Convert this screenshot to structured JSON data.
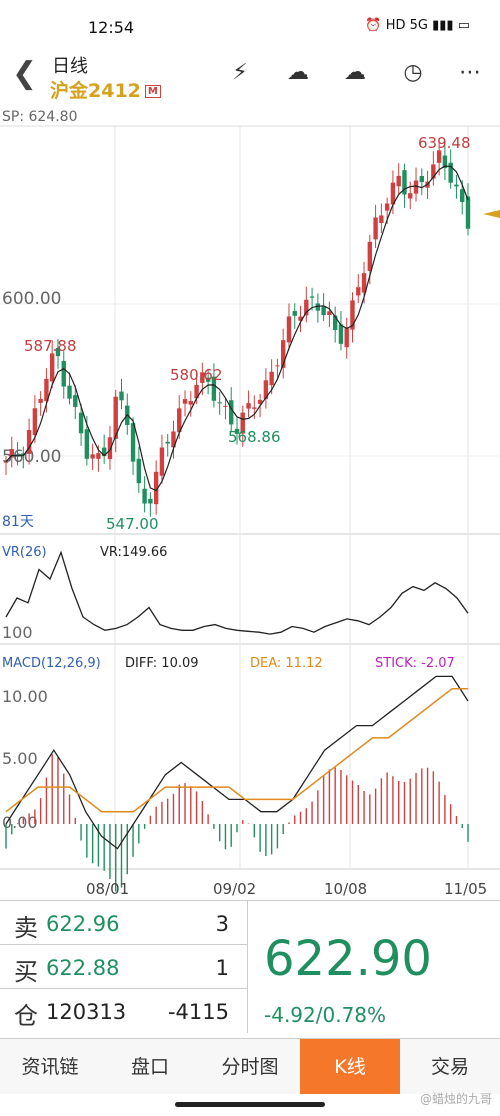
{
  "status": {
    "time": "12:54",
    "icons": "⏰ HD  5G ▮▮▮ ▭"
  },
  "nav": {
    "period": "日线",
    "symbol": "沪金2412",
    "badge": "M",
    "icons": [
      "lightning-icon",
      "cloud-down-icon",
      "cloud-sync-icon",
      "clock-icon",
      "more-icon"
    ]
  },
  "kline": {
    "sp_label": "SP: 624.80",
    "y_tick_upper": "600.00",
    "y_tick_lower": "560.00",
    "period_label": "81天",
    "annotations": {
      "high": "639.48",
      "left_high": "587.88",
      "mid_high": "580.62",
      "low": "547.00",
      "mid_low": "568.86"
    }
  },
  "vr": {
    "name": "VR(26)",
    "value_text": "VR:149.66",
    "tick": "100"
  },
  "macd": {
    "name": "MACD(12,26,9)",
    "diff": "DIFF: 10.09",
    "dea": "DEA: 11.12",
    "stick": "STICK: -2.07",
    "ticks": [
      "10.00",
      "5.00",
      "0.00"
    ]
  },
  "x_labels": [
    "08/01",
    "09/02",
    "10/08",
    "11/05"
  ],
  "quote": {
    "sell_label": "卖",
    "sell_price": "622.96",
    "sell_qty": "3",
    "buy_label": "买",
    "buy_price": "622.88",
    "buy_qty": "1",
    "oi_label": "仓",
    "oi_value": "120313",
    "oi_change": "-4115",
    "last": "622.90",
    "change": "-4.92/0.78%"
  },
  "tabs": [
    "资讯链",
    "盘口",
    "分时图",
    "K线",
    "交易"
  ],
  "watermark": "@蜡烛的九哥",
  "colors": {
    "up": "#d04040",
    "down": "#1f8f5f",
    "accent": "#f5782a",
    "gold": "#d6a21d",
    "dea": "#e08a1e",
    "stick": "#c020c0"
  },
  "chart_data": {
    "type": "candlestick",
    "x": [
      "08/01",
      "09/02",
      "10/08",
      "11/05"
    ],
    "close_path": [
      557,
      560,
      565,
      572,
      580,
      587,
      580,
      570,
      560,
      558,
      564,
      575,
      570,
      552,
      548,
      556,
      562,
      570,
      576,
      580,
      578,
      575,
      572,
      568,
      570,
      575,
      580,
      586,
      592,
      598,
      602,
      600,
      596,
      590,
      596,
      604,
      612,
      622,
      630,
      633,
      628,
      630,
      636,
      639,
      634,
      628,
      623
    ]
  }
}
